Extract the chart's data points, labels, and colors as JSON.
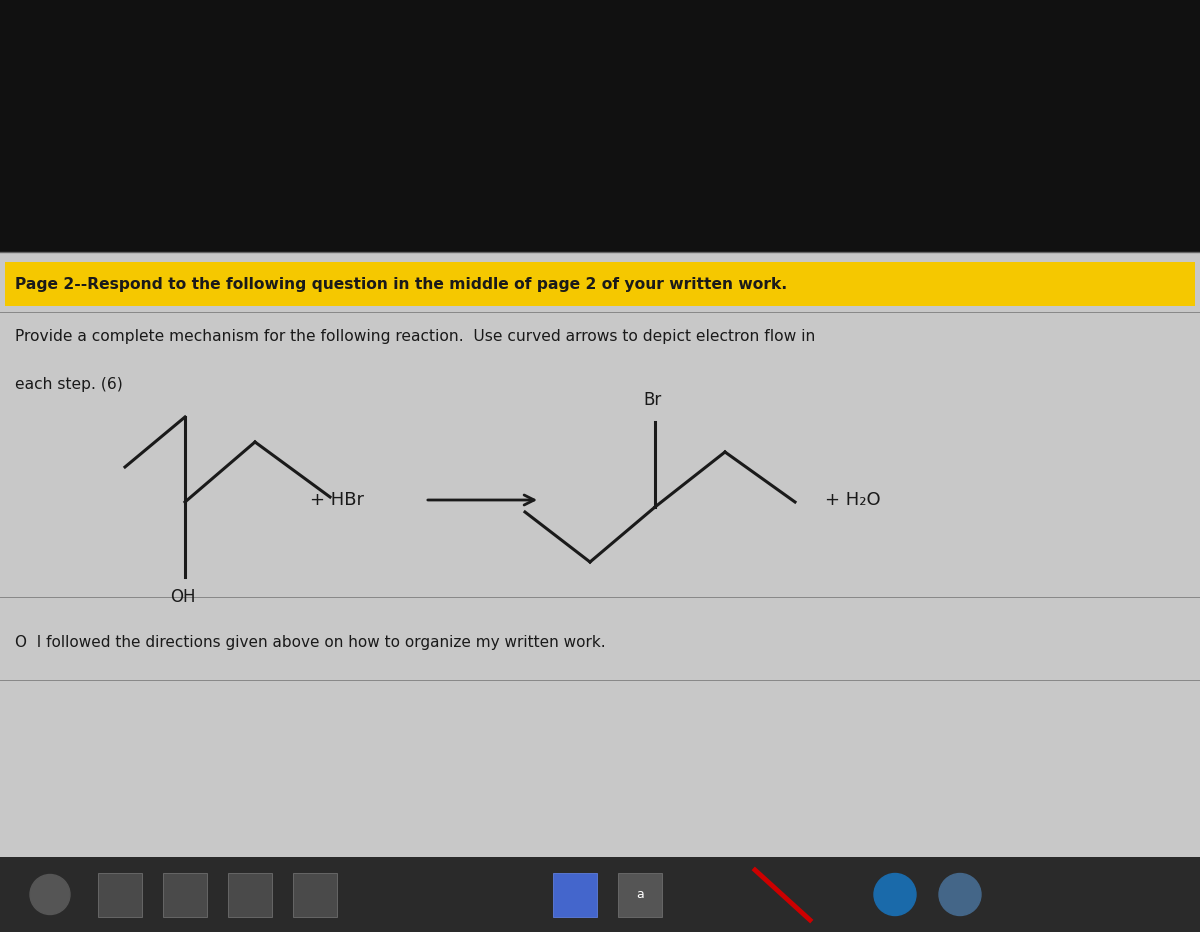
{
  "background_top": "#111111",
  "page_bg": "#c8c8c8",
  "taskbar_bg": "#222222",
  "highlight_color": "#f5c800",
  "title_line": "Page 2--Respond to the following question in the middle of page 2 of your written work.",
  "subtitle_line1": "Provide a complete mechanism for the following reaction.  Use curved arrows to depict electron flow in",
  "subtitle_line2": "each step. (6)",
  "checkbox_text": "O  I followed the directions given above on how to organize my written work.",
  "hbr_label": "+ HBr",
  "br_label": "Br",
  "h2o_label": "+ H₂O",
  "oh_label": "OH",
  "text_color": "#1a1a1a",
  "line_color": "#1a1a1a",
  "title_bg": "#f5c800",
  "divider_color": "#888888"
}
